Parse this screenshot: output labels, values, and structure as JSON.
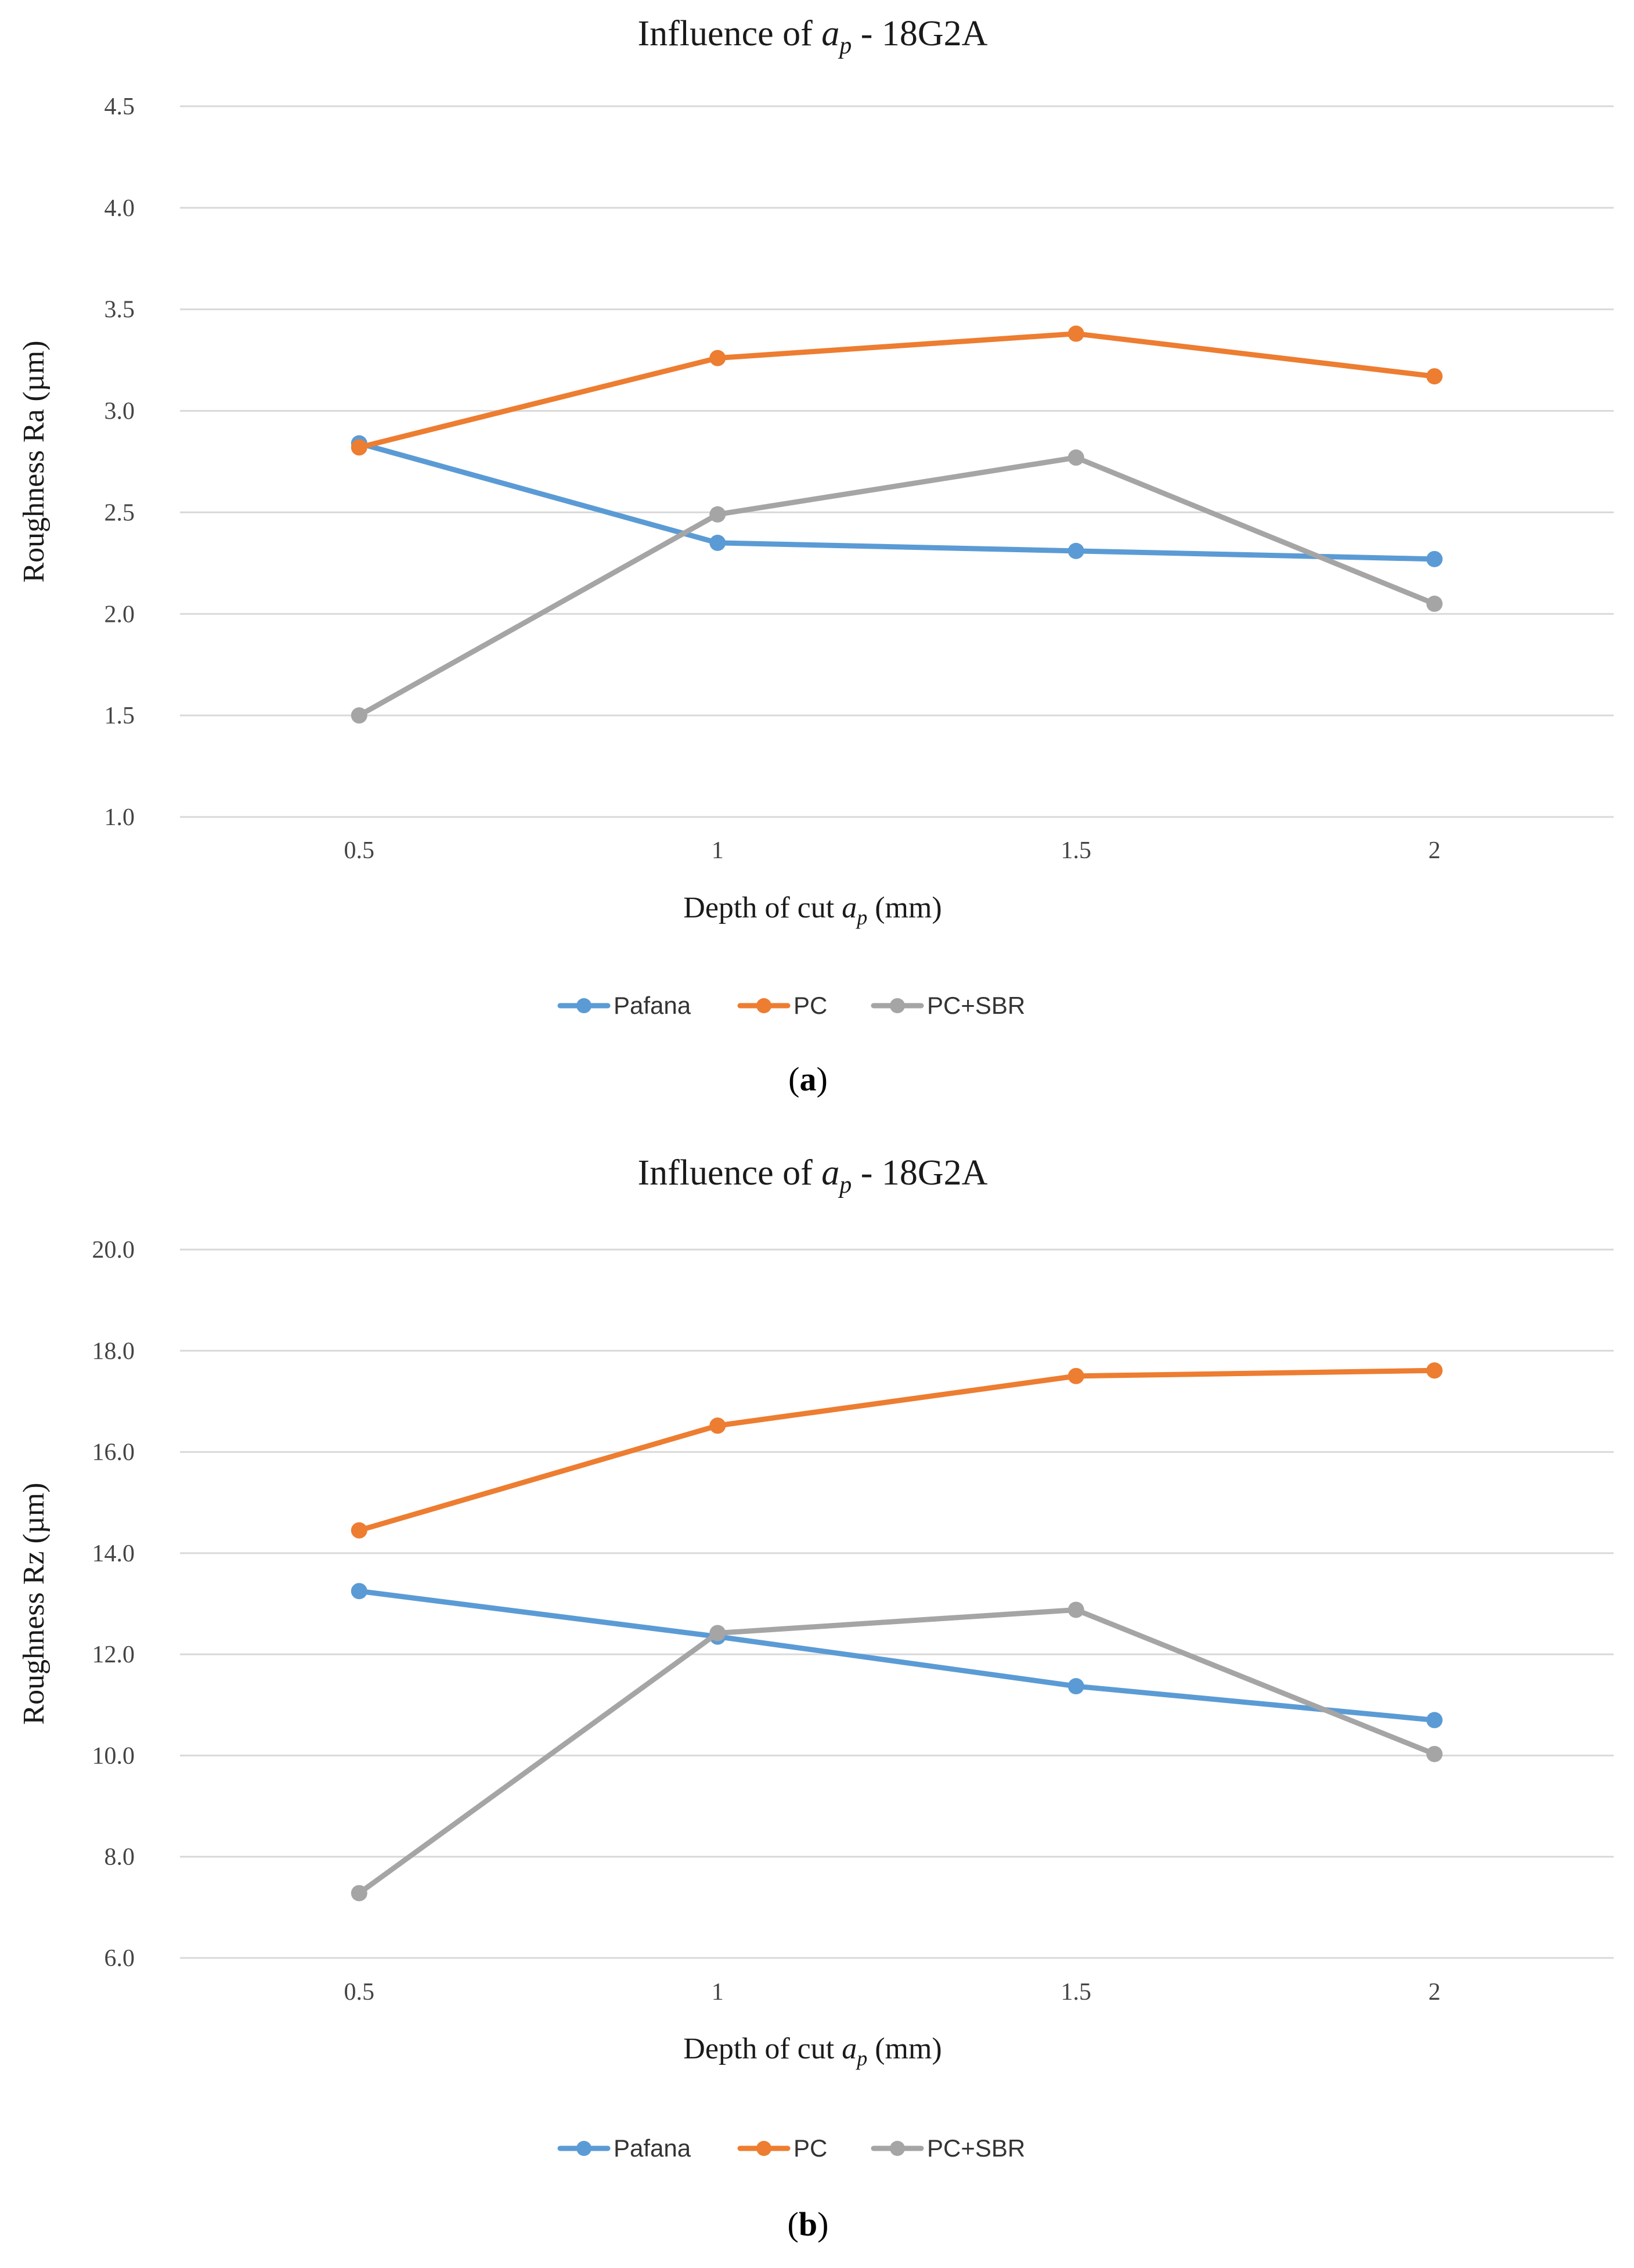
{
  "chart_data": [
    {
      "type": "line",
      "title": "Influence of ap - 18G2A",
      "title_main": "Influence of ",
      "title_var": "a",
      "title_sub": "p",
      "title_rest": " - 18G2A",
      "xlabel": "Depth of cut ap (mm)",
      "xlabel_main": "Depth of cut ",
      "xlabel_var": "a",
      "xlabel_sub": "p",
      "xlabel_rest": " (mm)",
      "ylabel": "Roughness Ra (µm)",
      "categories": [
        "0.5",
        "1",
        "1.5",
        "2"
      ],
      "ylim": [
        1.0,
        4.5
      ],
      "ytick_step": 0.5,
      "yticks": [
        "1.0",
        "1.5",
        "2.0",
        "2.5",
        "3.0",
        "3.5",
        "4.0",
        "4.5"
      ],
      "legend_position": "bottom",
      "caption": "(a)",
      "caption_letter": "a",
      "series": [
        {
          "name": "Pafana",
          "color": "#5b9bd5",
          "values": [
            2.84,
            2.35,
            2.31,
            2.27
          ]
        },
        {
          "name": "PC",
          "color": "#ed7d31",
          "values": [
            2.82,
            3.26,
            3.38,
            3.17
          ]
        },
        {
          "name": "PC+SBR",
          "color": "#a5a5a5",
          "values": [
            1.5,
            2.49,
            2.77,
            2.05
          ]
        }
      ]
    },
    {
      "type": "line",
      "title": "Influence of ap - 18G2A",
      "title_main": "Influence of ",
      "title_var": "a",
      "title_sub": "p",
      "title_rest": " - 18G2A",
      "xlabel": "Depth of cut ap (mm)",
      "xlabel_main": "Depth of cut ",
      "xlabel_var": "a",
      "xlabel_sub": "p",
      "xlabel_rest": " (mm)",
      "ylabel": "Roughness Rz (µm)",
      "categories": [
        "0.5",
        "1",
        "1.5",
        "2"
      ],
      "ylim": [
        6.0,
        20.0
      ],
      "ytick_step": 2.0,
      "yticks": [
        "6.0",
        "8.0",
        "10.0",
        "12.0",
        "14.0",
        "16.0",
        "18.0",
        "20.0"
      ],
      "legend_position": "bottom",
      "caption": "(b)",
      "caption_letter": "b",
      "series": [
        {
          "name": "Pafana",
          "color": "#5b9bd5",
          "values": [
            13.25,
            12.35,
            11.37,
            10.7
          ]
        },
        {
          "name": "PC",
          "color": "#ed7d31",
          "values": [
            14.45,
            16.52,
            17.5,
            17.61
          ]
        },
        {
          "name": "PC+SBR",
          "color": "#a5a5a5",
          "values": [
            7.28,
            12.42,
            12.88,
            10.03
          ]
        }
      ]
    }
  ]
}
